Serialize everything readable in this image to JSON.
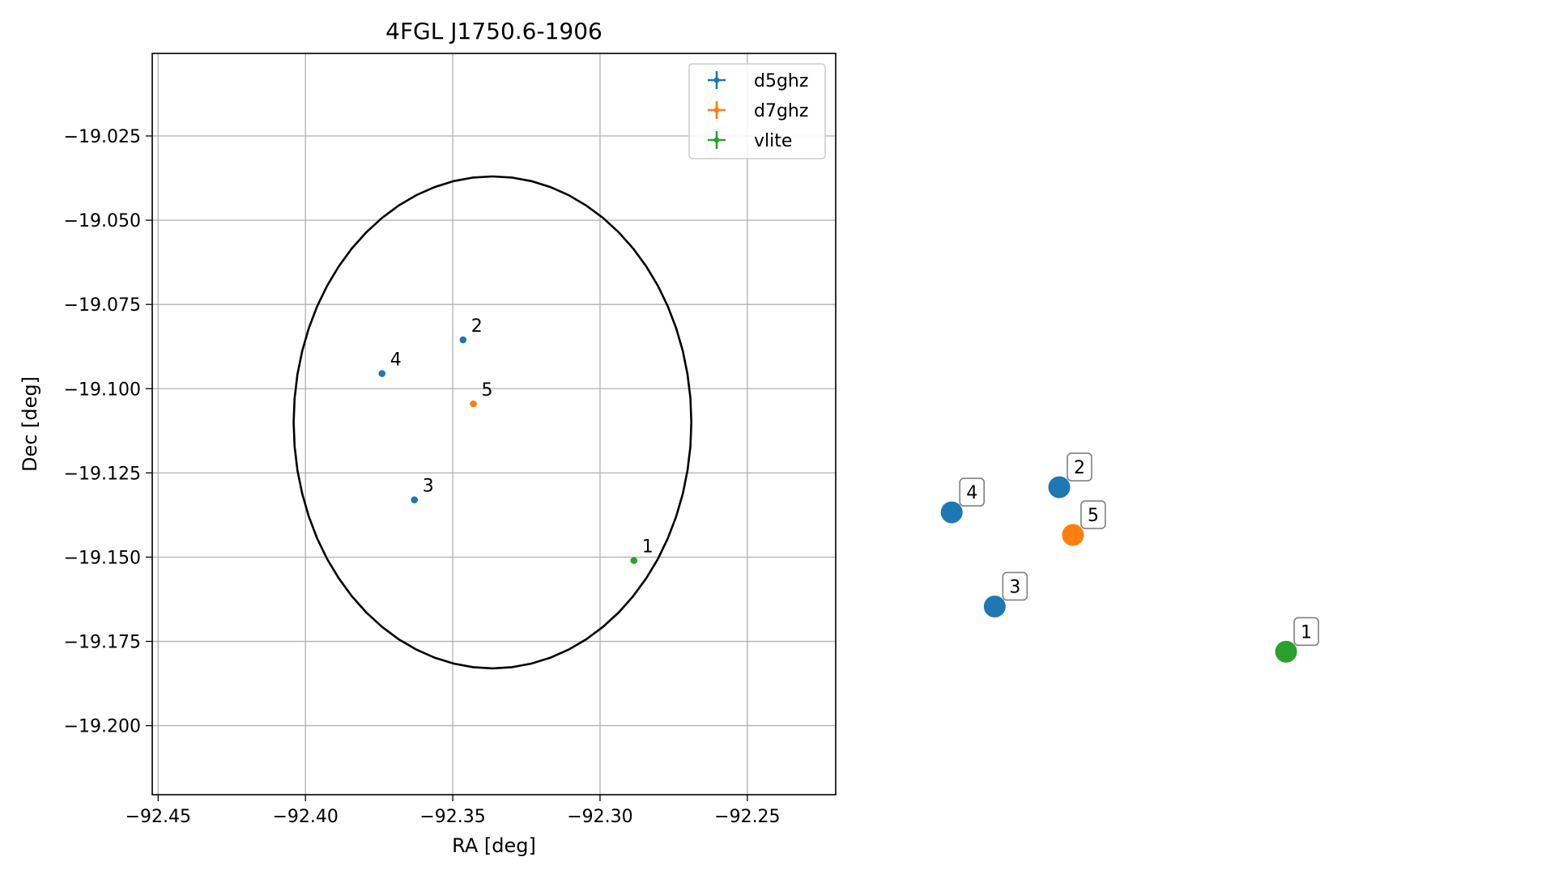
{
  "chart_data": {
    "type": "scatter",
    "title": "4FGL J1750.6-1906",
    "xlabel": "RA [deg]",
    "ylabel": "Dec [deg]",
    "xlim": [
      -92.452,
      -92.22
    ],
    "ylim": [
      -19.2205,
      -19.0005
    ],
    "x_ticks": [
      {
        "value": -92.45,
        "label": "−92.45"
      },
      {
        "value": -92.4,
        "label": "−92.40"
      },
      {
        "value": -92.35,
        "label": "−92.35"
      },
      {
        "value": -92.3,
        "label": "−92.30"
      },
      {
        "value": -92.25,
        "label": "−92.25"
      }
    ],
    "y_ticks": [
      {
        "value": -19.025,
        "label": "−19.025"
      },
      {
        "value": -19.05,
        "label": "−19.050"
      },
      {
        "value": -19.075,
        "label": "−19.075"
      },
      {
        "value": -19.1,
        "label": "−19.100"
      },
      {
        "value": -19.125,
        "label": "−19.125"
      },
      {
        "value": -19.15,
        "label": "−19.150"
      },
      {
        "value": -19.175,
        "label": "−19.175"
      },
      {
        "value": -19.2,
        "label": "−19.200"
      }
    ],
    "grid": true,
    "legend_position": "top-right",
    "ellipse": {
      "center_ra": -92.3365,
      "center_dec": -19.11,
      "semi_ra": 0.0675,
      "semi_dec": 0.073,
      "color": "#000000"
    },
    "series": [
      {
        "name": "d5ghz",
        "color": "#1f77b4"
      },
      {
        "name": "d7ghz",
        "color": "#ff7f0e"
      },
      {
        "name": "vlite",
        "color": "#2ca02c"
      }
    ],
    "points": [
      {
        "label": "1",
        "series": "vlite",
        "ra": -92.2885,
        "dec": -19.151
      },
      {
        "label": "2",
        "series": "d5ghz",
        "ra": -92.3465,
        "dec": -19.0855
      },
      {
        "label": "3",
        "series": "d5ghz",
        "ra": -92.363,
        "dec": -19.133
      },
      {
        "label": "4",
        "series": "d5ghz",
        "ra": -92.374,
        "dec": -19.0955
      },
      {
        "label": "5",
        "series": "d7ghz",
        "ra": -92.343,
        "dec": -19.1045
      }
    ]
  },
  "side_markers": {
    "x_range": [
      -92.402,
      -92.22
    ],
    "y_range": [
      -19.2395,
      -18.8915
    ],
    "items": [
      {
        "label": "1",
        "color": "#2ca02c"
      },
      {
        "label": "2",
        "color": "#1f77b4"
      },
      {
        "label": "3",
        "color": "#1f77b4"
      },
      {
        "label": "4",
        "color": "#1f77b4"
      },
      {
        "label": "5",
        "color": "#ff7f0e"
      }
    ]
  }
}
